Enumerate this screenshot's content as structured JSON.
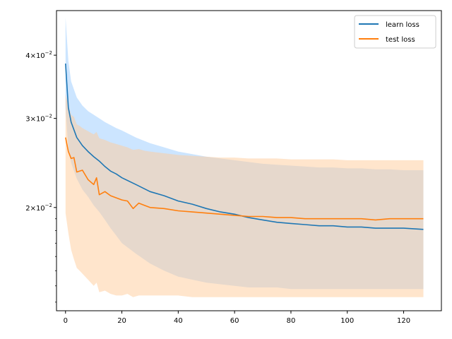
{
  "chart_data": {
    "type": "line",
    "title": "",
    "xlabel": "",
    "ylabel": "",
    "yscale": "log",
    "xlim": [
      -3.2,
      133.4
    ],
    "ylim": [
      0.0125,
      0.049
    ],
    "grid": false,
    "legend_position": "top-right",
    "x_ticks": [
      0,
      20,
      40,
      60,
      80,
      100,
      120
    ],
    "x_tick_labels": [
      "0",
      "20",
      "40",
      "60",
      "80",
      "100",
      "120"
    ],
    "y_ticks": [
      0.02,
      0.03,
      0.04
    ],
    "y_tick_mant": [
      "2",
      "3",
      "4"
    ],
    "y_tick_exp_base": "×10",
    "y_tick_exp": "−2",
    "series": [
      {
        "name": "learn loss",
        "color": "#1f77b4",
        "band_color": "#99ccff",
        "x": [
          0,
          1,
          2,
          4,
          6,
          8,
          10,
          12,
          14,
          16,
          18,
          20,
          25,
          30,
          35,
          40,
          45,
          50,
          55,
          60,
          65,
          70,
          75,
          80,
          85,
          90,
          95,
          100,
          105,
          110,
          115,
          120,
          127
        ],
        "y": [
          0.0385,
          0.0315,
          0.0295,
          0.0275,
          0.0265,
          0.0258,
          0.0252,
          0.0247,
          0.0241,
          0.0236,
          0.0233,
          0.0229,
          0.0222,
          0.0215,
          0.0211,
          0.0206,
          0.0203,
          0.0199,
          0.0196,
          0.0194,
          0.0191,
          0.0189,
          0.0187,
          0.0186,
          0.0185,
          0.0184,
          0.0184,
          0.0183,
          0.0183,
          0.0182,
          0.0182,
          0.0182,
          0.0181
        ],
        "lower": [
          0.0315,
          0.026,
          0.0245,
          0.0228,
          0.0217,
          0.021,
          0.0202,
          0.0196,
          0.0189,
          0.0182,
          0.0176,
          0.017,
          0.0162,
          0.0155,
          0.015,
          0.0146,
          0.0144,
          0.0142,
          0.0141,
          0.014,
          0.0139,
          0.0139,
          0.0139,
          0.0138,
          0.0138,
          0.0138,
          0.0138,
          0.0138,
          0.0138,
          0.0138,
          0.0138,
          0.0138,
          0.0138
        ],
        "upper": [
          0.0475,
          0.039,
          0.0355,
          0.033,
          0.0318,
          0.031,
          0.0305,
          0.03,
          0.0295,
          0.0291,
          0.0287,
          0.0284,
          0.0275,
          0.0268,
          0.0263,
          0.0258,
          0.0255,
          0.0252,
          0.025,
          0.0248,
          0.0246,
          0.0244,
          0.0243,
          0.0242,
          0.0241,
          0.024,
          0.024,
          0.0239,
          0.0239,
          0.0238,
          0.0238,
          0.0237,
          0.0237
        ]
      },
      {
        "name": "test loss",
        "color": "#ff7f0e",
        "band_color": "#ffcc99",
        "x": [
          0,
          1,
          2,
          3,
          4,
          5,
          6,
          8,
          10,
          11,
          12,
          14,
          16,
          18,
          20,
          22,
          24,
          26,
          28,
          30,
          35,
          40,
          45,
          50,
          55,
          60,
          65,
          70,
          75,
          80,
          85,
          90,
          95,
          100,
          105,
          110,
          115,
          120,
          127
        ],
        "y": [
          0.0275,
          0.0258,
          0.025,
          0.0251,
          0.0235,
          0.0236,
          0.0237,
          0.0227,
          0.0222,
          0.0229,
          0.0212,
          0.0215,
          0.0211,
          0.0209,
          0.0207,
          0.0206,
          0.0199,
          0.0204,
          0.0202,
          0.02,
          0.0199,
          0.0197,
          0.0196,
          0.0195,
          0.0194,
          0.0193,
          0.0192,
          0.0192,
          0.0191,
          0.0191,
          0.019,
          0.019,
          0.019,
          0.019,
          0.019,
          0.0189,
          0.019,
          0.019,
          0.019
        ],
        "lower": [
          0.0195,
          0.0178,
          0.0165,
          0.0158,
          0.0152,
          0.015,
          0.0148,
          0.0144,
          0.014,
          0.0142,
          0.0136,
          0.0137,
          0.0135,
          0.0134,
          0.0134,
          0.0135,
          0.0133,
          0.0134,
          0.0134,
          0.0134,
          0.0134,
          0.0134,
          0.0133,
          0.0133,
          0.0133,
          0.0133,
          0.0133,
          0.0133,
          0.0133,
          0.0133,
          0.0133,
          0.0133,
          0.0133,
          0.0133,
          0.0133,
          0.0133,
          0.0133,
          0.0133,
          0.0133
        ],
        "upper": [
          0.0335,
          0.0318,
          0.0305,
          0.0302,
          0.0292,
          0.029,
          0.0287,
          0.0283,
          0.0279,
          0.0282,
          0.0274,
          0.0272,
          0.0269,
          0.0267,
          0.0265,
          0.0263,
          0.026,
          0.0261,
          0.0259,
          0.0258,
          0.0256,
          0.0254,
          0.0253,
          0.0252,
          0.0251,
          0.0251,
          0.025,
          0.025,
          0.025,
          0.0249,
          0.0249,
          0.0249,
          0.0249,
          0.0248,
          0.0248,
          0.0248,
          0.0248,
          0.0248,
          0.0248
        ]
      }
    ]
  }
}
